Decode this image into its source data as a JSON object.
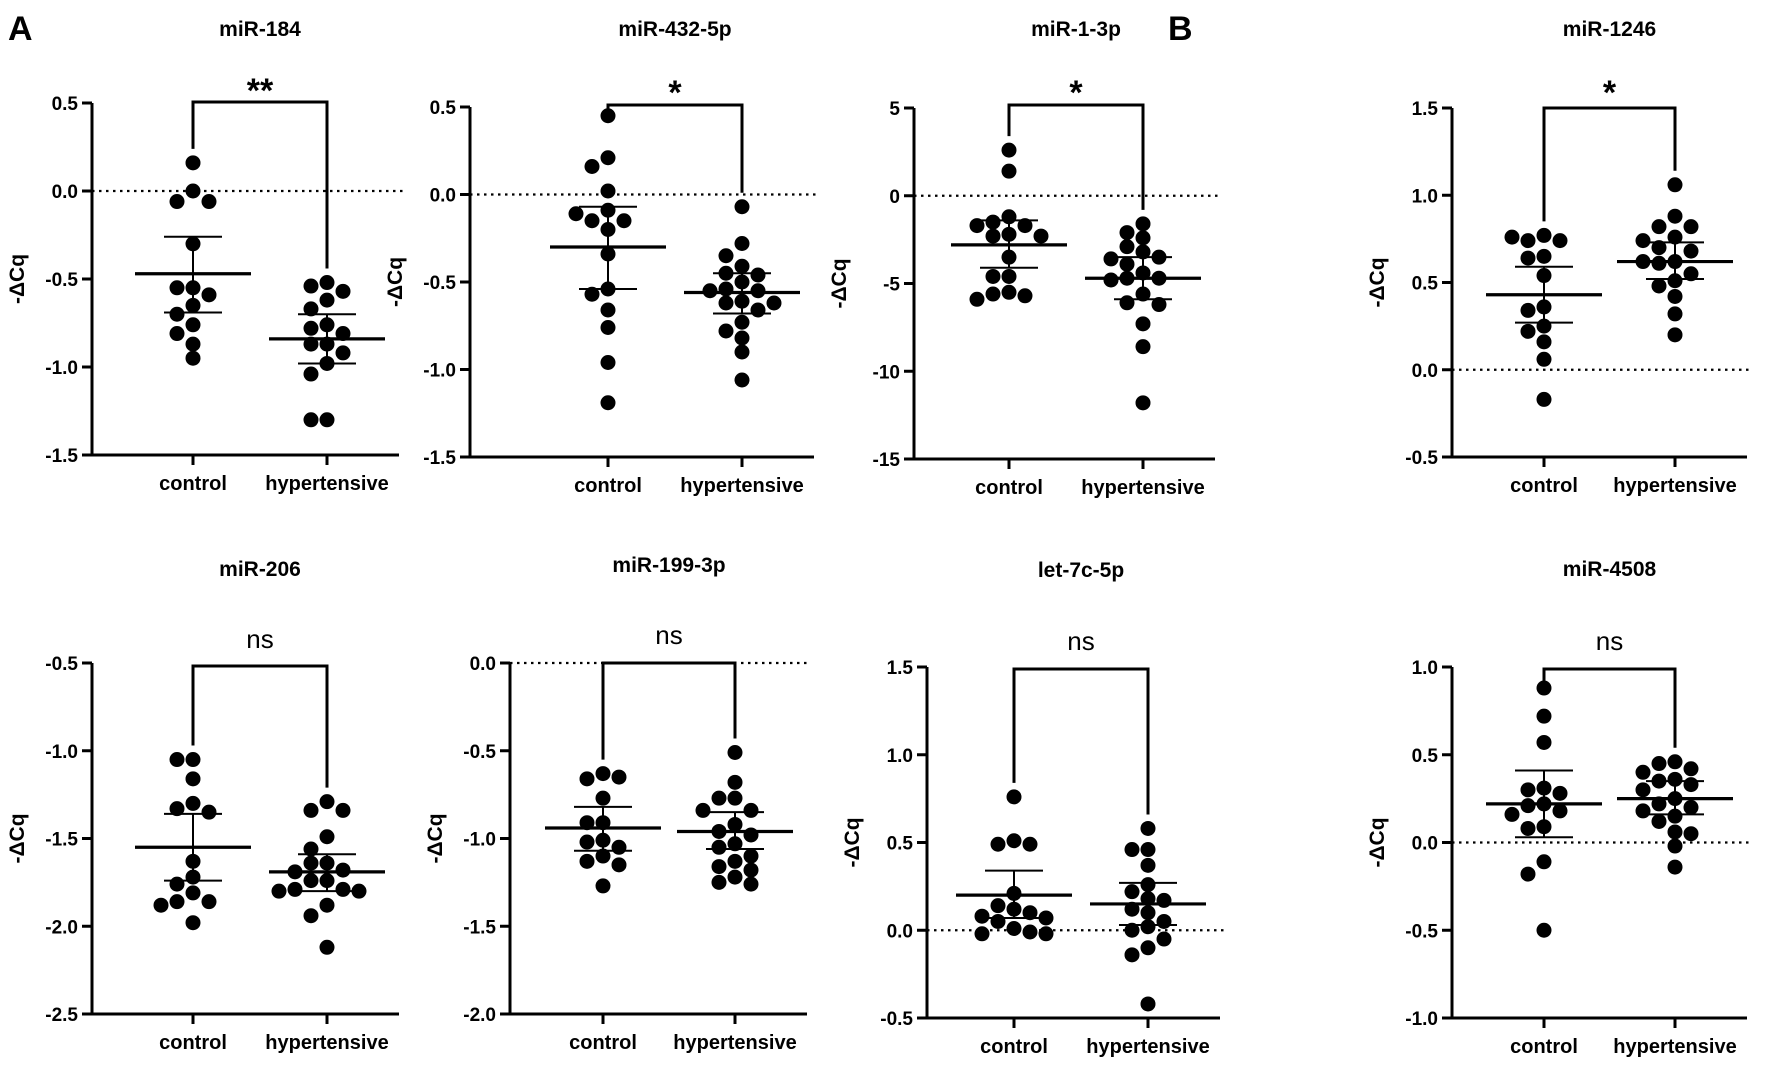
{
  "panel_letters": [
    "A",
    "B"
  ],
  "chart_data": [
    {
      "type": "scatter",
      "panel": "A",
      "title": "miR-184",
      "xlabel": "",
      "ylabel": "-ΔCq",
      "categories": [
        "control",
        "hypertensive"
      ],
      "ylim": [
        -1.5,
        0.5
      ],
      "yticks": [
        -1.5,
        -1.0,
        -0.5,
        0.0,
        0.5
      ],
      "tick_labels": [
        "-1.5",
        "-1.0",
        "-0.5",
        "0.0",
        "0.5"
      ],
      "reference_line": 0.0,
      "significance": "**",
      "series": [
        {
          "name": "control",
          "mean": -0.47,
          "err_low": -0.69,
          "err_high": -0.26,
          "values": [
            0.16,
            0.0,
            -0.06,
            -0.06,
            -0.3,
            -0.55,
            -0.55,
            -0.59,
            -0.65,
            -0.7,
            -0.76,
            -0.81,
            -0.87,
            -0.95
          ]
        },
        {
          "name": "hypertensive",
          "mean": -0.84,
          "err_low": -0.98,
          "err_high": -0.7,
          "values": [
            -0.52,
            -0.54,
            -0.57,
            -0.62,
            -0.67,
            -0.76,
            -0.78,
            -0.81,
            -0.87,
            -0.87,
            -0.92,
            -0.98,
            -1.04,
            -1.3,
            -1.3
          ]
        }
      ]
    },
    {
      "type": "scatter",
      "panel": "A",
      "title": "miR-432-5p",
      "xlabel": "",
      "ylabel": "-ΔCq",
      "categories": [
        "control",
        "hypertensive"
      ],
      "ylim": [
        -1.5,
        0.5
      ],
      "yticks": [
        -1.5,
        -1.0,
        -0.5,
        0.0,
        0.5
      ],
      "tick_labels": [
        "-1.5",
        "-1.0",
        "-0.5",
        "0.0",
        "0.5"
      ],
      "reference_line": 0.0,
      "significance": "*",
      "series": [
        {
          "name": "control",
          "mean": -0.3,
          "err_low": -0.54,
          "err_high": -0.07,
          "values": [
            0.45,
            0.21,
            0.16,
            0.02,
            -0.09,
            -0.15,
            -0.15,
            -0.11,
            -0.2,
            -0.34,
            -0.54,
            -0.57,
            -0.66,
            -0.76,
            -0.96,
            -1.19
          ]
        },
        {
          "name": "hypertensive",
          "mean": -0.56,
          "err_low": -0.68,
          "err_high": -0.45,
          "values": [
            -0.07,
            -0.28,
            -0.35,
            -0.41,
            -0.45,
            -0.46,
            -0.5,
            -0.54,
            -0.55,
            -0.55,
            -0.61,
            -0.62,
            -0.62,
            -0.66,
            -0.73,
            -0.78,
            -0.82,
            -0.9,
            -1.06
          ]
        }
      ]
    },
    {
      "type": "scatter",
      "panel": "A",
      "title": "miR-1-3p",
      "xlabel": "",
      "ylabel": "-ΔCq",
      "categories": [
        "control",
        "hypertensive"
      ],
      "ylim": [
        -15,
        5
      ],
      "yticks": [
        -15,
        -10,
        -5,
        0,
        5
      ],
      "tick_labels": [
        "-15",
        "-10",
        "-5",
        "0",
        "5"
      ],
      "reference_line": 0,
      "significance": "*",
      "series": [
        {
          "name": "control",
          "mean": -2.8,
          "err_low": -4.1,
          "err_high": -1.4,
          "values": [
            2.6,
            1.4,
            -1.2,
            -1.5,
            -1.7,
            -1.7,
            -2.2,
            -2.3,
            -2.3,
            -3.5,
            -4.6,
            -4.6,
            -5.5,
            -5.6,
            -5.7,
            -5.9
          ]
        },
        {
          "name": "hypertensive",
          "mean": -4.7,
          "err_low": -5.9,
          "err_high": -3.5,
          "values": [
            -1.6,
            -2.1,
            -2.4,
            -2.9,
            -3.2,
            -3.5,
            -3.6,
            -3.9,
            -4.4,
            -4.7,
            -4.7,
            -4.8,
            -5.6,
            -6.1,
            -6.2,
            -7.3,
            -8.6,
            -11.8
          ]
        }
      ]
    },
    {
      "type": "scatter",
      "panel": "B",
      "title": "miR-1246",
      "xlabel": "",
      "ylabel": "-ΔCq",
      "categories": [
        "control",
        "hypertensive"
      ],
      "ylim": [
        -0.5,
        1.5
      ],
      "yticks": [
        -0.5,
        0.0,
        0.5,
        1.0,
        1.5
      ],
      "tick_labels": [
        "-0.5",
        "0.0",
        "0.5",
        "1.0",
        "1.5"
      ],
      "reference_line": 0.0,
      "significance": "*",
      "series": [
        {
          "name": "control",
          "mean": 0.43,
          "err_low": 0.27,
          "err_high": 0.59,
          "values": [
            0.77,
            0.74,
            0.74,
            0.76,
            0.65,
            0.64,
            0.54,
            0.36,
            0.34,
            0.25,
            0.22,
            0.16,
            0.06,
            -0.17
          ]
        },
        {
          "name": "hypertensive",
          "mean": 0.62,
          "err_low": 0.52,
          "err_high": 0.73,
          "values": [
            1.06,
            0.88,
            0.82,
            0.82,
            0.76,
            0.74,
            0.7,
            0.68,
            0.62,
            0.62,
            0.61,
            0.55,
            0.51,
            0.48,
            0.42,
            0.32,
            0.2
          ]
        }
      ]
    },
    {
      "type": "scatter",
      "panel": "A",
      "title": "miR-206",
      "xlabel": "",
      "ylabel": "-ΔCq",
      "categories": [
        "control",
        "hypertensive"
      ],
      "ylim": [
        -2.5,
        -0.5
      ],
      "yticks": [
        -2.5,
        -2.0,
        -1.5,
        -1.0,
        -0.5
      ],
      "tick_labels": [
        "-2.5",
        "-2.0",
        "-1.5",
        "-1.0",
        "-0.5"
      ],
      "reference_line": null,
      "significance": "ns",
      "series": [
        {
          "name": "control",
          "mean": -1.55,
          "err_low": -1.74,
          "err_high": -1.36,
          "values": [
            -1.05,
            -1.05,
            -1.16,
            -1.3,
            -1.33,
            -1.35,
            -1.63,
            -1.72,
            -1.76,
            -1.81,
            -1.86,
            -1.86,
            -1.88,
            -1.98
          ]
        },
        {
          "name": "hypertensive",
          "mean": -1.69,
          "err_low": -1.8,
          "err_high": -1.59,
          "values": [
            -1.29,
            -1.34,
            -1.34,
            -1.49,
            -1.56,
            -1.64,
            -1.64,
            -1.68,
            -1.69,
            -1.74,
            -1.74,
            -1.79,
            -1.79,
            -1.8,
            -1.8,
            -1.88,
            -1.94,
            -2.12
          ]
        }
      ]
    },
    {
      "type": "scatter",
      "panel": "A",
      "title": "miR-199-3p",
      "xlabel": "",
      "ylabel": "-ΔCq",
      "categories": [
        "control",
        "hypertensive"
      ],
      "ylim": [
        -2.0,
        0.0
      ],
      "yticks": [
        -2.0,
        -1.5,
        -1.0,
        -0.5,
        0.0
      ],
      "tick_labels": [
        "-2.0",
        "-1.5",
        "-1.0",
        "-0.5",
        "0.0"
      ],
      "reference_line": 0.0,
      "significance": "ns",
      "series": [
        {
          "name": "control",
          "mean": -0.94,
          "err_low": -1.07,
          "err_high": -0.82,
          "values": [
            -0.63,
            -0.66,
            -0.65,
            -0.77,
            -0.91,
            -0.91,
            -1.01,
            -1.02,
            -1.05,
            -1.1,
            -1.13,
            -1.15,
            -1.27
          ]
        },
        {
          "name": "hypertensive",
          "mean": -0.96,
          "err_low": -1.06,
          "err_high": -0.85,
          "values": [
            -0.51,
            -0.68,
            -0.77,
            -0.77,
            -0.84,
            -0.84,
            -0.92,
            -0.96,
            -0.98,
            -1.03,
            -1.05,
            -1.1,
            -1.13,
            -1.16,
            -1.18,
            -1.22,
            -1.25,
            -1.26
          ]
        }
      ]
    },
    {
      "type": "scatter",
      "panel": "A",
      "title": "let-7c-5p",
      "xlabel": "",
      "ylabel": "-ΔCq",
      "categories": [
        "control",
        "hypertensive"
      ],
      "ylim": [
        -0.5,
        1.5
      ],
      "yticks": [
        -0.5,
        0.0,
        0.5,
        1.0,
        1.5
      ],
      "tick_labels": [
        "-0.5",
        "0.0",
        "0.5",
        "1.0",
        "1.5"
      ],
      "reference_line": 0.0,
      "significance": "ns",
      "series": [
        {
          "name": "control",
          "mean": 0.2,
          "err_low": 0.07,
          "err_high": 0.34,
          "values": [
            0.76,
            0.51,
            0.49,
            0.49,
            0.21,
            0.14,
            0.12,
            0.1,
            0.08,
            0.07,
            0.05,
            0.01,
            -0.01,
            -0.02,
            -0.02
          ]
        },
        {
          "name": "hypertensive",
          "mean": 0.15,
          "err_low": 0.03,
          "err_high": 0.27,
          "values": [
            0.58,
            0.46,
            0.46,
            0.37,
            0.26,
            0.22,
            0.18,
            0.17,
            0.12,
            0.1,
            0.05,
            0.02,
            0.0,
            -0.05,
            -0.1,
            -0.14,
            -0.42
          ]
        }
      ]
    },
    {
      "type": "scatter",
      "panel": "B",
      "title": "miR-4508",
      "xlabel": "",
      "ylabel": "-ΔCq",
      "categories": [
        "control",
        "hypertensive"
      ],
      "ylim": [
        -1.0,
        1.0
      ],
      "yticks": [
        -1.0,
        -0.5,
        0.0,
        0.5,
        1.0
      ],
      "tick_labels": [
        "-1.0",
        "-0.5",
        "0.0",
        "0.5",
        "1.0"
      ],
      "reference_line": 0.0,
      "significance": "ns",
      "series": [
        {
          "name": "control",
          "mean": 0.22,
          "err_low": 0.03,
          "err_high": 0.41,
          "values": [
            0.88,
            0.72,
            0.57,
            0.31,
            0.3,
            0.28,
            0.22,
            0.21,
            0.18,
            0.16,
            0.09,
            0.08,
            -0.11,
            -0.18,
            -0.5
          ]
        },
        {
          "name": "hypertensive",
          "mean": 0.25,
          "err_low": 0.16,
          "err_high": 0.35,
          "values": [
            0.46,
            0.45,
            0.42,
            0.4,
            0.36,
            0.35,
            0.33,
            0.3,
            0.25,
            0.22,
            0.2,
            0.18,
            0.15,
            0.12,
            0.06,
            0.05,
            -0.02,
            -0.14
          ]
        }
      ]
    }
  ]
}
